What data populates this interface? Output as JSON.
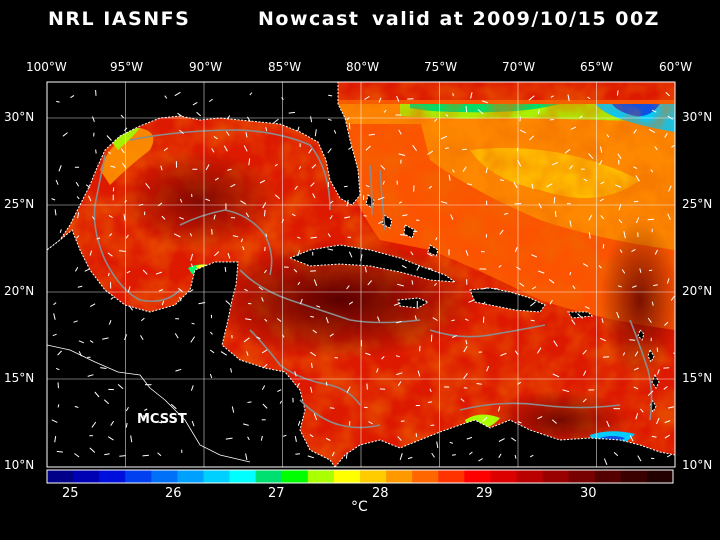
{
  "title": {
    "model": "NRL IASNFS",
    "product": "Nowcast",
    "valid": "valid at 2009/10/15 00Z"
  },
  "map": {
    "lon_labels": [
      "100°W",
      "95°W",
      "90°W",
      "85°W",
      "80°W",
      "75°W",
      "70°W",
      "65°W",
      "60°W"
    ],
    "lat_labels": [
      "30°N",
      "25°N",
      "20°N",
      "15°N",
      "10°N"
    ],
    "inset_label": "MCSST"
  },
  "colorbar": {
    "unit": "°C",
    "tick_labels": [
      "25",
      "26",
      "27",
      "28",
      "29",
      "30"
    ],
    "colors": [
      "#000088",
      "#0000b4",
      "#0010dc",
      "#0040f0",
      "#0070f8",
      "#00a0ff",
      "#00d0ff",
      "#00ffff",
      "#00e070",
      "#00ff00",
      "#aaff00",
      "#ffff00",
      "#ffcc00",
      "#ff9900",
      "#ff6600",
      "#ff3300",
      "#ff0000",
      "#dd0000",
      "#bb0000",
      "#990000",
      "#770000",
      "#550000",
      "#3a0000",
      "#220000"
    ]
  },
  "colors": {
    "land": "#000000",
    "contour": "#8c8c8c",
    "grid": "#ffffff",
    "sea_warm": "#dd1a00"
  }
}
